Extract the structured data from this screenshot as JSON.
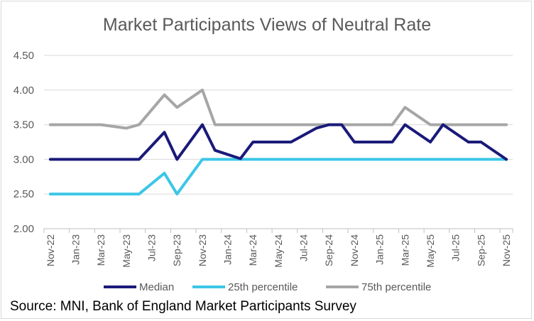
{
  "chart_data": {
    "type": "line",
    "title": "Market Participants Views of Neutral Rate",
    "xlabel": "",
    "ylabel": "",
    "ylim": [
      2.0,
      4.5
    ],
    "yticks": [
      "2.00",
      "2.50",
      "3.00",
      "3.50",
      "4.00",
      "4.50"
    ],
    "x_tick_labels": [
      "Nov-22",
      "Jan-23",
      "Mar-23",
      "May-23",
      "Jul-23",
      "Sep-23",
      "Nov-23",
      "Jan-24",
      "Mar-24",
      "May-24",
      "Jul-24",
      "Sep-24",
      "Nov-24",
      "Jan-25",
      "Mar-25",
      "May-25",
      "Jul-25",
      "Sep-25",
      "Nov-25"
    ],
    "grid": true,
    "legend_position": "bottom",
    "series": [
      {
        "name": "Median",
        "color": "#1a1a7a",
        "points": [
          [
            "Nov-22",
            3.0
          ],
          [
            "Mar-23",
            3.0
          ],
          [
            "Jun-23",
            3.0
          ],
          [
            "Aug-23",
            3.39
          ],
          [
            "Sep-23",
            3.0
          ],
          [
            "Nov-23",
            3.5
          ],
          [
            "Dec-23",
            3.13
          ],
          [
            "Feb-24",
            3.01
          ],
          [
            "Mar-24",
            3.25
          ],
          [
            "Jun-24",
            3.25
          ],
          [
            "Aug-24",
            3.45
          ],
          [
            "Sep-24",
            3.5
          ],
          [
            "Oct-24",
            3.5
          ],
          [
            "Nov-24",
            3.25
          ],
          [
            "Feb-25",
            3.25
          ],
          [
            "Mar-25",
            3.5
          ],
          [
            "May-25",
            3.25
          ],
          [
            "Jun-25",
            3.5
          ],
          [
            "Aug-25",
            3.25
          ],
          [
            "Sep-25",
            3.25
          ],
          [
            "Nov-25",
            3.0
          ]
        ]
      },
      {
        "name": "25th percentile",
        "color": "#3cc6e6",
        "points": [
          [
            "Nov-22",
            2.5
          ],
          [
            "Jun-23",
            2.5
          ],
          [
            "Aug-23",
            2.8
          ],
          [
            "Sep-23",
            2.5
          ],
          [
            "Nov-23",
            3.0
          ],
          [
            "Nov-25",
            3.0
          ]
        ]
      },
      {
        "name": "75th percentile",
        "color": "#a6a6a6",
        "points": [
          [
            "Nov-22",
            3.5
          ],
          [
            "Mar-23",
            3.5
          ],
          [
            "May-23",
            3.45
          ],
          [
            "Jun-23",
            3.5
          ],
          [
            "Aug-23",
            3.93
          ],
          [
            "Sep-23",
            3.75
          ],
          [
            "Nov-23",
            4.0
          ],
          [
            "Dec-23",
            3.5
          ],
          [
            "Feb-25",
            3.5
          ],
          [
            "Mar-25",
            3.75
          ],
          [
            "May-25",
            3.5
          ],
          [
            "Nov-25",
            3.5
          ]
        ]
      }
    ]
  },
  "source_text": "Source: MNI, Bank of England Market Participants Survey"
}
